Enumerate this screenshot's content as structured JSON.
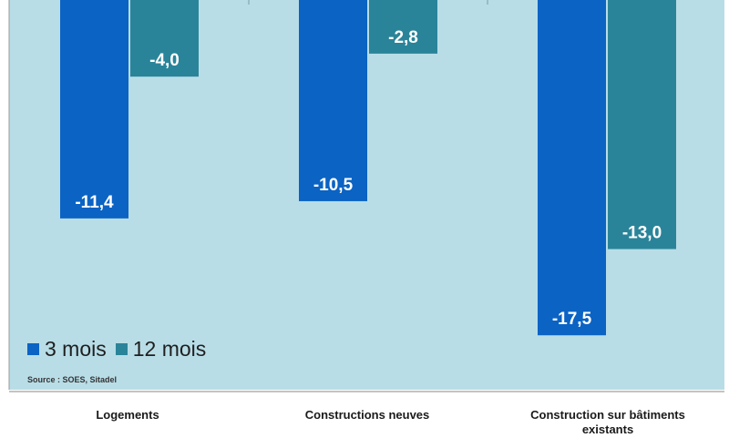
{
  "chart_data": {
    "type": "bar",
    "categories": [
      "Logements",
      "Constructions neuves",
      "Construction sur bâtiments existants"
    ],
    "series": [
      {
        "name": "3 mois",
        "color": "#0b63c4",
        "values": [
          -11.4,
          -10.5,
          -17.5
        ],
        "labels": [
          "-11,4",
          "-10,5",
          "-17,5"
        ]
      },
      {
        "name": "12 mois",
        "color": "#2a8499",
        "values": [
          -4.0,
          -2.8,
          -13.0
        ],
        "labels": [
          "-4,0",
          "-2,8",
          "-13,0"
        ]
      }
    ],
    "ylim": [
      -19.2,
      0
    ],
    "grid": false,
    "legend_position": "bottom-left",
    "source": "Source : SOES,  Sitadel",
    "plot_background": "#b8dde7"
  }
}
